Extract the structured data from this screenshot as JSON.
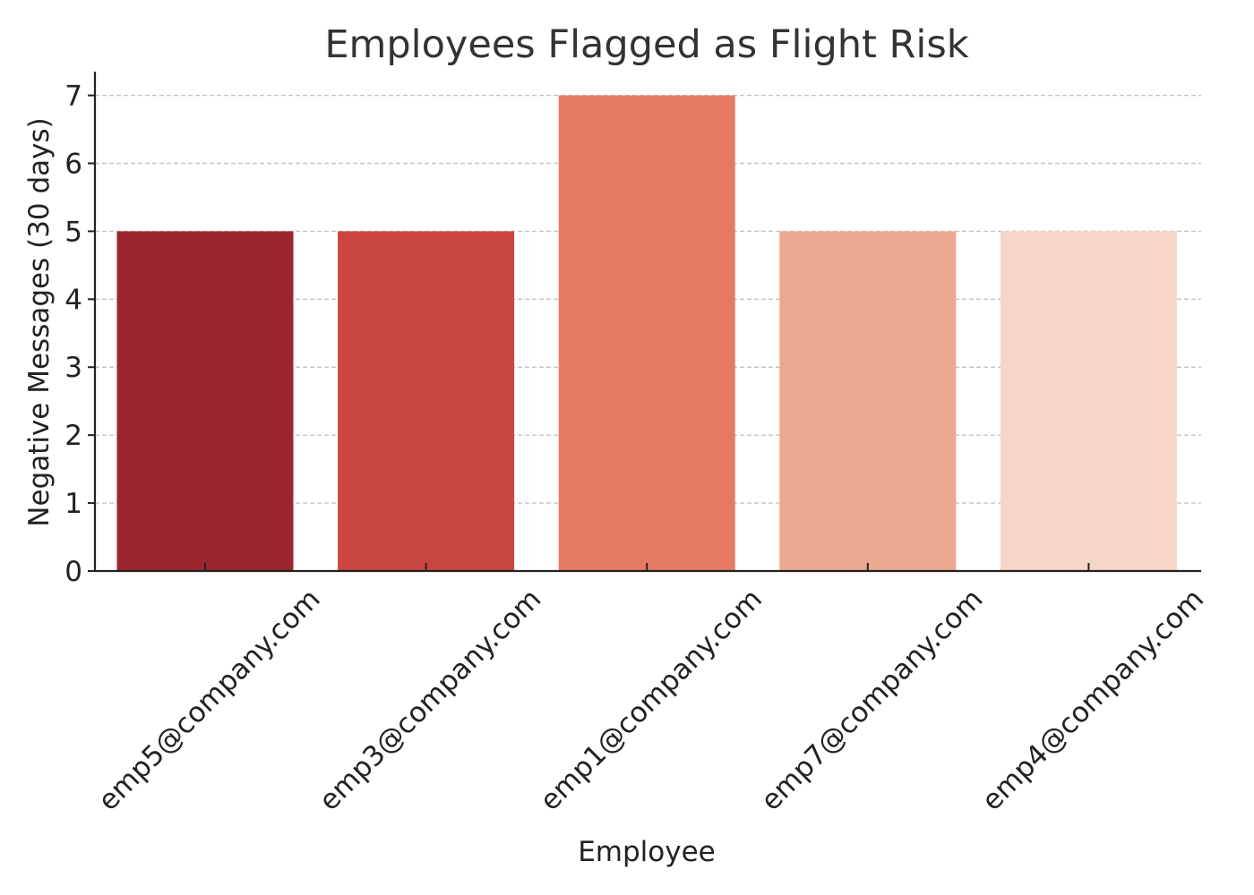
{
  "chart_data": {
    "type": "bar",
    "title": "Employees Flagged as Flight Risk",
    "xlabel": "Employee",
    "ylabel": "Negative Messages (30 days)",
    "categories": [
      "emp5@company.com",
      "emp3@company.com",
      "emp1@company.com",
      "emp7@company.com",
      "emp4@company.com"
    ],
    "values": [
      5,
      5,
      7,
      5,
      5
    ],
    "colors": [
      "#9c262d",
      "#ca4641",
      "#e67b63",
      "#eca891",
      "#f6d6c8"
    ],
    "ylim": [
      0,
      7.35
    ],
    "yticks": [
      0,
      1,
      2,
      3,
      4,
      5,
      6,
      7
    ],
    "grid": "y-dashed",
    "legend": "none"
  }
}
